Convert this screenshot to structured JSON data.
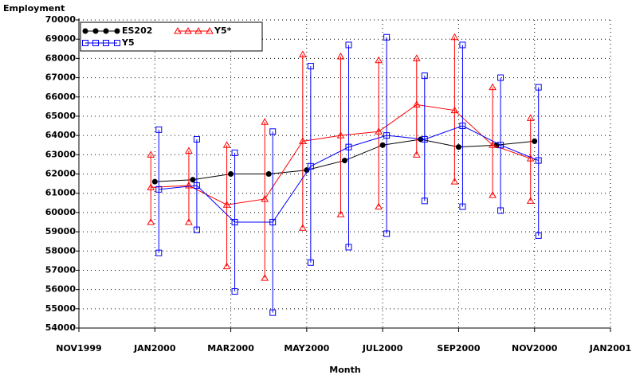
{
  "chart_data": {
    "type": "line",
    "ylabel": "Employment",
    "xlabel": "Month",
    "categories": [
      "NOV1999",
      null,
      "JAN2000",
      null,
      "MAR2000",
      null,
      "MAY2000",
      null,
      "JUL2000",
      null,
      "SEP2000",
      null,
      "NOV2000",
      null,
      "JAN2001"
    ],
    "ylim": [
      54000,
      70000
    ],
    "yticks": [
      54000,
      55000,
      56000,
      57000,
      58000,
      59000,
      60000,
      61000,
      62000,
      63000,
      64000,
      65000,
      66000,
      67000,
      68000,
      69000,
      70000
    ],
    "grid": true,
    "legend": "top-left",
    "series": [
      {
        "name": "ES202",
        "color": "#000000",
        "marker": "dot",
        "values": [
          null,
          null,
          61600,
          61700,
          62000,
          62000,
          62200,
          62700,
          63500,
          63800,
          63400,
          63500,
          63700,
          null,
          null
        ]
      },
      {
        "name": "Y5*",
        "color": "#ff0000",
        "marker": "triangle",
        "values": [
          null,
          null,
          61300,
          61400,
          60400,
          60700,
          63700,
          64000,
          64200,
          65600,
          65300,
          63500,
          62800,
          null,
          null
        ],
        "lower": [
          null,
          null,
          59500,
          59500,
          57200,
          56600,
          59200,
          59900,
          60300,
          63000,
          61600,
          60900,
          60600,
          null,
          null
        ],
        "upper": [
          null,
          null,
          63000,
          63200,
          63500,
          64700,
          68200,
          68100,
          67900,
          68000,
          69100,
          66500,
          64900,
          null,
          null
        ]
      },
      {
        "name": "Y5",
        "color": "#0000ff",
        "marker": "square",
        "values": [
          null,
          null,
          61200,
          61400,
          59500,
          59500,
          62400,
          63400,
          64000,
          63800,
          64500,
          63500,
          62700,
          null,
          null
        ],
        "lower": [
          null,
          null,
          57900,
          59100,
          55900,
          54800,
          57400,
          58200,
          58900,
          60600,
          60300,
          60100,
          58800,
          null,
          null
        ],
        "upper": [
          null,
          null,
          64300,
          63800,
          63100,
          64200,
          67600,
          68700,
          69100,
          67100,
          68700,
          67000,
          66500,
          null,
          null
        ]
      }
    ]
  }
}
